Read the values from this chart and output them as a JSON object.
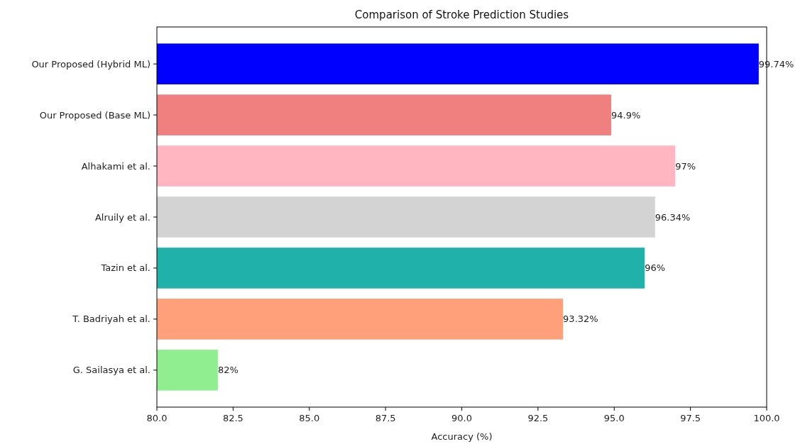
{
  "chart_data": {
    "type": "bar",
    "orientation": "horizontal",
    "title": "Comparison of Stroke Prediction Studies",
    "xlabel": "Accuracy (%)",
    "categories": [
      "Our Proposed (Hybrid ML)",
      "Our Proposed (Base ML)",
      "Alhakami et al.",
      "Alruily et al.",
      "Tazin et al.",
      "T. Badriyah et al.",
      "G. Sailasya et al."
    ],
    "values": [
      99.74,
      94.9,
      97,
      96.34,
      96,
      93.32,
      82
    ],
    "colors": [
      "#0000ff",
      "#f08080",
      "#ffb6c1",
      "#d3d3d3",
      "#20b2aa",
      "#ffa07a",
      "#90ee90"
    ],
    "value_labels": [
      "99.74%",
      "94.9%",
      "97%",
      "96.34%",
      "96%",
      "93.32%",
      "82%"
    ],
    "xlim": [
      80,
      100
    ],
    "xticks": [
      {
        "value": 80,
        "label": "80.0"
      },
      {
        "value": 82.5,
        "label": "82.5"
      },
      {
        "value": 85,
        "label": "85.0"
      },
      {
        "value": 87.5,
        "label": "87.5"
      },
      {
        "value": 90,
        "label": "90.0"
      },
      {
        "value": 92.5,
        "label": "92.5"
      },
      {
        "value": 95,
        "label": "95.0"
      },
      {
        "value": 97.5,
        "label": "97.5"
      },
      {
        "value": 100,
        "label": "100.0"
      }
    ],
    "grid": false
  }
}
